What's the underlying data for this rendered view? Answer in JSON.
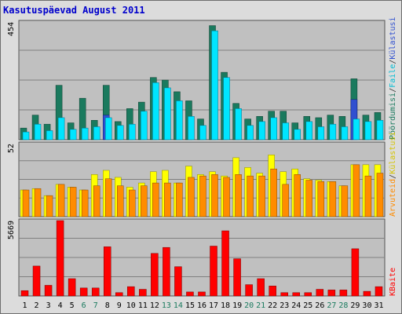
{
  "title": "Kasutuspäevad August 2011",
  "chart_data": [
    {
      "type": "bar",
      "panel": "top",
      "ymax_label": "454",
      "ylim": [
        0,
        454
      ],
      "grid": true,
      "categories": [
        "1",
        "2",
        "3",
        "4",
        "5",
        "6",
        "7",
        "8",
        "9",
        "10",
        "11",
        "12",
        "13",
        "14",
        "15",
        "16",
        "17",
        "18",
        "19",
        "20",
        "21",
        "22",
        "23",
        "24",
        "25",
        "26",
        "27",
        "28",
        "29",
        "30",
        "31"
      ],
      "weekend_days": [
        "6",
        "7",
        "13",
        "14",
        "20",
        "21",
        "27",
        "28"
      ],
      "series": [
        {
          "name": "Pöördumisi",
          "color": "#1a7a5e",
          "values": [
            45,
            95,
            60,
            210,
            65,
            160,
            75,
            210,
            70,
            120,
            145,
            240,
            230,
            185,
            150,
            80,
            440,
            260,
            140,
            80,
            90,
            110,
            110,
            65,
            90,
            85,
            95,
            90,
            235,
            95,
            105
          ]
        },
        {
          "name": "Faile",
          "color": "#00e5ff",
          "values": [
            30,
            60,
            35,
            85,
            40,
            45,
            50,
            85,
            55,
            60,
            110,
            220,
            200,
            150,
            90,
            55,
            420,
            240,
            120,
            55,
            70,
            85,
            65,
            40,
            70,
            50,
            60,
            50,
            80,
            70,
            75
          ]
        },
        {
          "name": "Külastuse",
          "color": "#3050d0",
          "values": [
            0,
            0,
            0,
            0,
            0,
            0,
            0,
            95,
            0,
            0,
            0,
            0,
            0,
            0,
            0,
            0,
            0,
            0,
            0,
            0,
            0,
            0,
            0,
            0,
            0,
            0,
            0,
            0,
            155,
            0,
            0
          ]
        }
      ]
    },
    {
      "type": "bar",
      "panel": "middle",
      "ymax_label": "52",
      "ylim": [
        0,
        52
      ],
      "grid": true,
      "series": [
        {
          "name": "Külastusi",
          "color": "#ffff00",
          "values": [
            19,
            20,
            15,
            23,
            21,
            19,
            30,
            33,
            28,
            21,
            24,
            32,
            33,
            24,
            36,
            30,
            32,
            29,
            42,
            35,
            31,
            44,
            32,
            34,
            27,
            26,
            25,
            22,
            37,
            37,
            37
          ]
        },
        {
          "name": "Arvuteid",
          "color": "#ff8c00",
          "values": [
            19,
            20,
            15,
            23,
            21,
            19,
            22,
            27,
            22,
            19,
            22,
            24,
            24,
            24,
            28,
            29,
            30,
            28,
            30,
            29,
            29,
            34,
            23,
            30,
            26,
            25,
            25,
            22,
            37,
            29,
            31
          ]
        }
      ]
    },
    {
      "type": "bar",
      "panel": "bottom",
      "ymax_label": "5669",
      "ylim": [
        0,
        5669
      ],
      "grid": true,
      "series": [
        {
          "name": "KBaite",
          "color": "#ff0000",
          "values": [
            400,
            2250,
            800,
            5669,
            1300,
            600,
            600,
            3700,
            250,
            700,
            500,
            3200,
            3650,
            2200,
            300,
            300,
            3750,
            4900,
            2800,
            850,
            1300,
            750,
            250,
            250,
            250,
            500,
            450,
            450,
            3550,
            350,
            700
          ]
        }
      ]
    }
  ],
  "legend": {
    "top": [
      "Pöördumisi",
      "Faile",
      "Külastusi"
    ],
    "middle": [
      "Arvuteid",
      "Külastusi"
    ],
    "bottom": [
      "KBaite"
    ],
    "separator": "/"
  },
  "colors": {
    "title": "#0000cc",
    "panel_bg": "#c0c0c0",
    "weekend_tick": "#1a7a5e",
    "weekday_tick": "#000000"
  }
}
